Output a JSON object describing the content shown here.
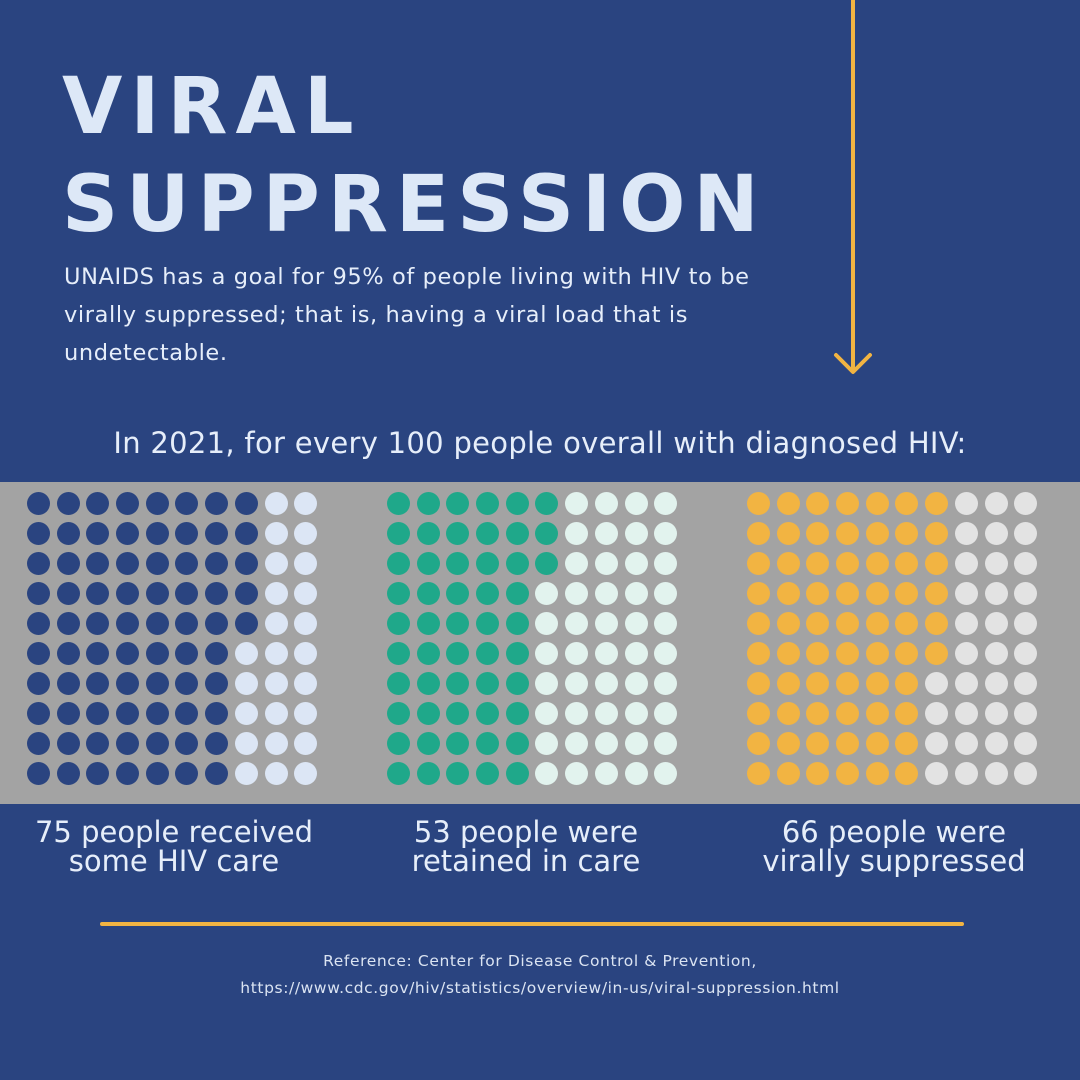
{
  "title": {
    "line1": "VIRAL",
    "line2": "SUPPRESSION"
  },
  "intro": "UNAIDS has a goal for 95% of people living with HIV to be virally suppressed; that is, having a viral load that is undetectable.",
  "subtitle": "In 2021, for every 100 people overall with diagnosed HIV:",
  "icons": {
    "arrow": "down-arrow-icon"
  },
  "colors": {
    "background": "#2a4480",
    "band": "#a3a3a3",
    "accent": "#f2b442",
    "text": "#dde8f7"
  },
  "panels": [
    {
      "count": 75,
      "total": 100,
      "filled_color": "#2a4480",
      "empty_color": "#dce6f5",
      "caption_line1": "75 people received",
      "caption_line2": "some HIV care"
    },
    {
      "count": 53,
      "total": 100,
      "filled_color": "#1fa88a",
      "empty_color": "#e2f3ee",
      "caption_line1": "53 people were",
      "caption_line2": "retained in care"
    },
    {
      "count": 66,
      "total": 100,
      "filled_color": "#f2b442",
      "empty_color": "#e3e3e3",
      "caption_line1": "66 people were",
      "caption_line2": "virally suppressed"
    }
  ],
  "reference": {
    "line1": "Reference: Center for Disease Control & Prevention,",
    "line2": "https://www.cdc.gov/hiv/statistics/overview/in-us/viral-suppression.html"
  }
}
